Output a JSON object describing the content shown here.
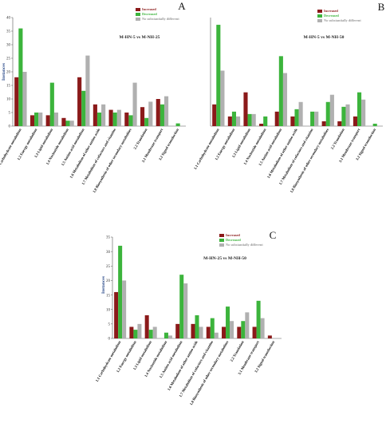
{
  "colors": {
    "increased": "#8b1a1a",
    "decreased": "#3cb43c",
    "noChange": "#b0b0b0"
  },
  "legend_labels": [
    "Increased",
    "Decreased",
    "No substantially different"
  ],
  "chart_data": [
    {
      "type": "bar",
      "panel_letter": "A",
      "title": "M-HN-5 vs M-NH-25",
      "ylabel": "Instances",
      "ylim": [
        0,
        40
      ],
      "yticks": [
        "0",
        "5",
        "10",
        "15",
        "20",
        "25",
        "30",
        "35",
        "40"
      ],
      "categories": [
        "1.1 Carbohydrate metabolism",
        "1.2 Energy metabolism",
        "1.3 Lipid metabolism",
        "1.4 Nucleotide metabolism",
        "1.5 Amino acid metabolism",
        "1.6 Metabolism of other amino acids",
        "1.7 Metabolism of cofactors and vitamins",
        "1.8 Biosynthesis of other secondary metabolites",
        "2.2 Translation",
        "3.1 Membrane transport",
        "3.2 Signal transduction"
      ],
      "series": [
        {
          "name": "Increased",
          "values": [
            18,
            4,
            4,
            3,
            18,
            8,
            6,
            5,
            7,
            10,
            0
          ]
        },
        {
          "name": "Decreased",
          "values": [
            36,
            5,
            16,
            2,
            13,
            5,
            5,
            4,
            3,
            8,
            1
          ]
        },
        {
          "name": "No substantially different",
          "values": [
            20,
            5,
            5,
            2,
            26,
            8,
            6,
            16,
            9,
            11,
            0
          ]
        }
      ]
    },
    {
      "type": "bar",
      "panel_letter": "B",
      "title": "M-HN-5 vs M-NH-50",
      "ylabel": "",
      "ylim": [
        0,
        45
      ],
      "yticks": [],
      "categories": [
        "1.1 Carbohydrate metabolism",
        "1.2 Energy metabolism",
        "1.3 Lipid metabolism",
        "1.4 Nucleotide metabolism",
        "1.5 Amino acid metabolism",
        "1.6 Metabolism of other amino acids",
        "1.7 Metabolism of cofactors and vitamins",
        "1.8 Biosynthesis of other secondary metabolites",
        "2.2 Translation",
        "3.1 Membrane transport",
        "3.2 Signal transduction"
      ],
      "series": [
        {
          "name": "Increased",
          "values": [
            9,
            4,
            14,
            1,
            6,
            4,
            0,
            2,
            2,
            4,
            0
          ]
        },
        {
          "name": "Decreased",
          "values": [
            42,
            6,
            5,
            4,
            29,
            7,
            6,
            10,
            8,
            14,
            1
          ]
        },
        {
          "name": "No substantially different",
          "values": [
            23,
            4,
            5,
            0,
            22,
            10,
            6,
            13,
            9,
            11,
            0
          ]
        }
      ]
    },
    {
      "type": "bar",
      "panel_letter": "C",
      "title": "M-HN-25 vs M-NH-50",
      "ylabel": "Instances",
      "ylim": [
        0,
        35
      ],
      "yticks": [
        "0",
        "5",
        "10",
        "15",
        "20",
        "25",
        "30",
        "35"
      ],
      "categories": [
        "1.1 Carbohydrate metabolism",
        "1.2 Energy metabolism",
        "1.3 Lipid metabolism",
        "1.4 Nucleotide metabolism",
        "1.5 Amino acid metabolism",
        "1.6 Metabolism of other amino acids",
        "1.7 Metabolism of cofactors and vitamins",
        "1.8 Biosynthesis of other secondary metabolites",
        "2.2 Translation",
        "3.1 Membrane transport",
        "3.2 Signal transduction"
      ],
      "series": [
        {
          "name": "Increased",
          "values": [
            16,
            4,
            8,
            0,
            5,
            5,
            4,
            4,
            4,
            4,
            1
          ]
        },
        {
          "name": "Decreased",
          "values": [
            32,
            3,
            3,
            2,
            22,
            8,
            7,
            11,
            6,
            13,
            0
          ]
        },
        {
          "name": "No substantially different",
          "values": [
            20,
            5,
            4,
            1,
            19,
            4,
            2,
            6,
            9,
            7,
            0
          ]
        }
      ]
    }
  ]
}
